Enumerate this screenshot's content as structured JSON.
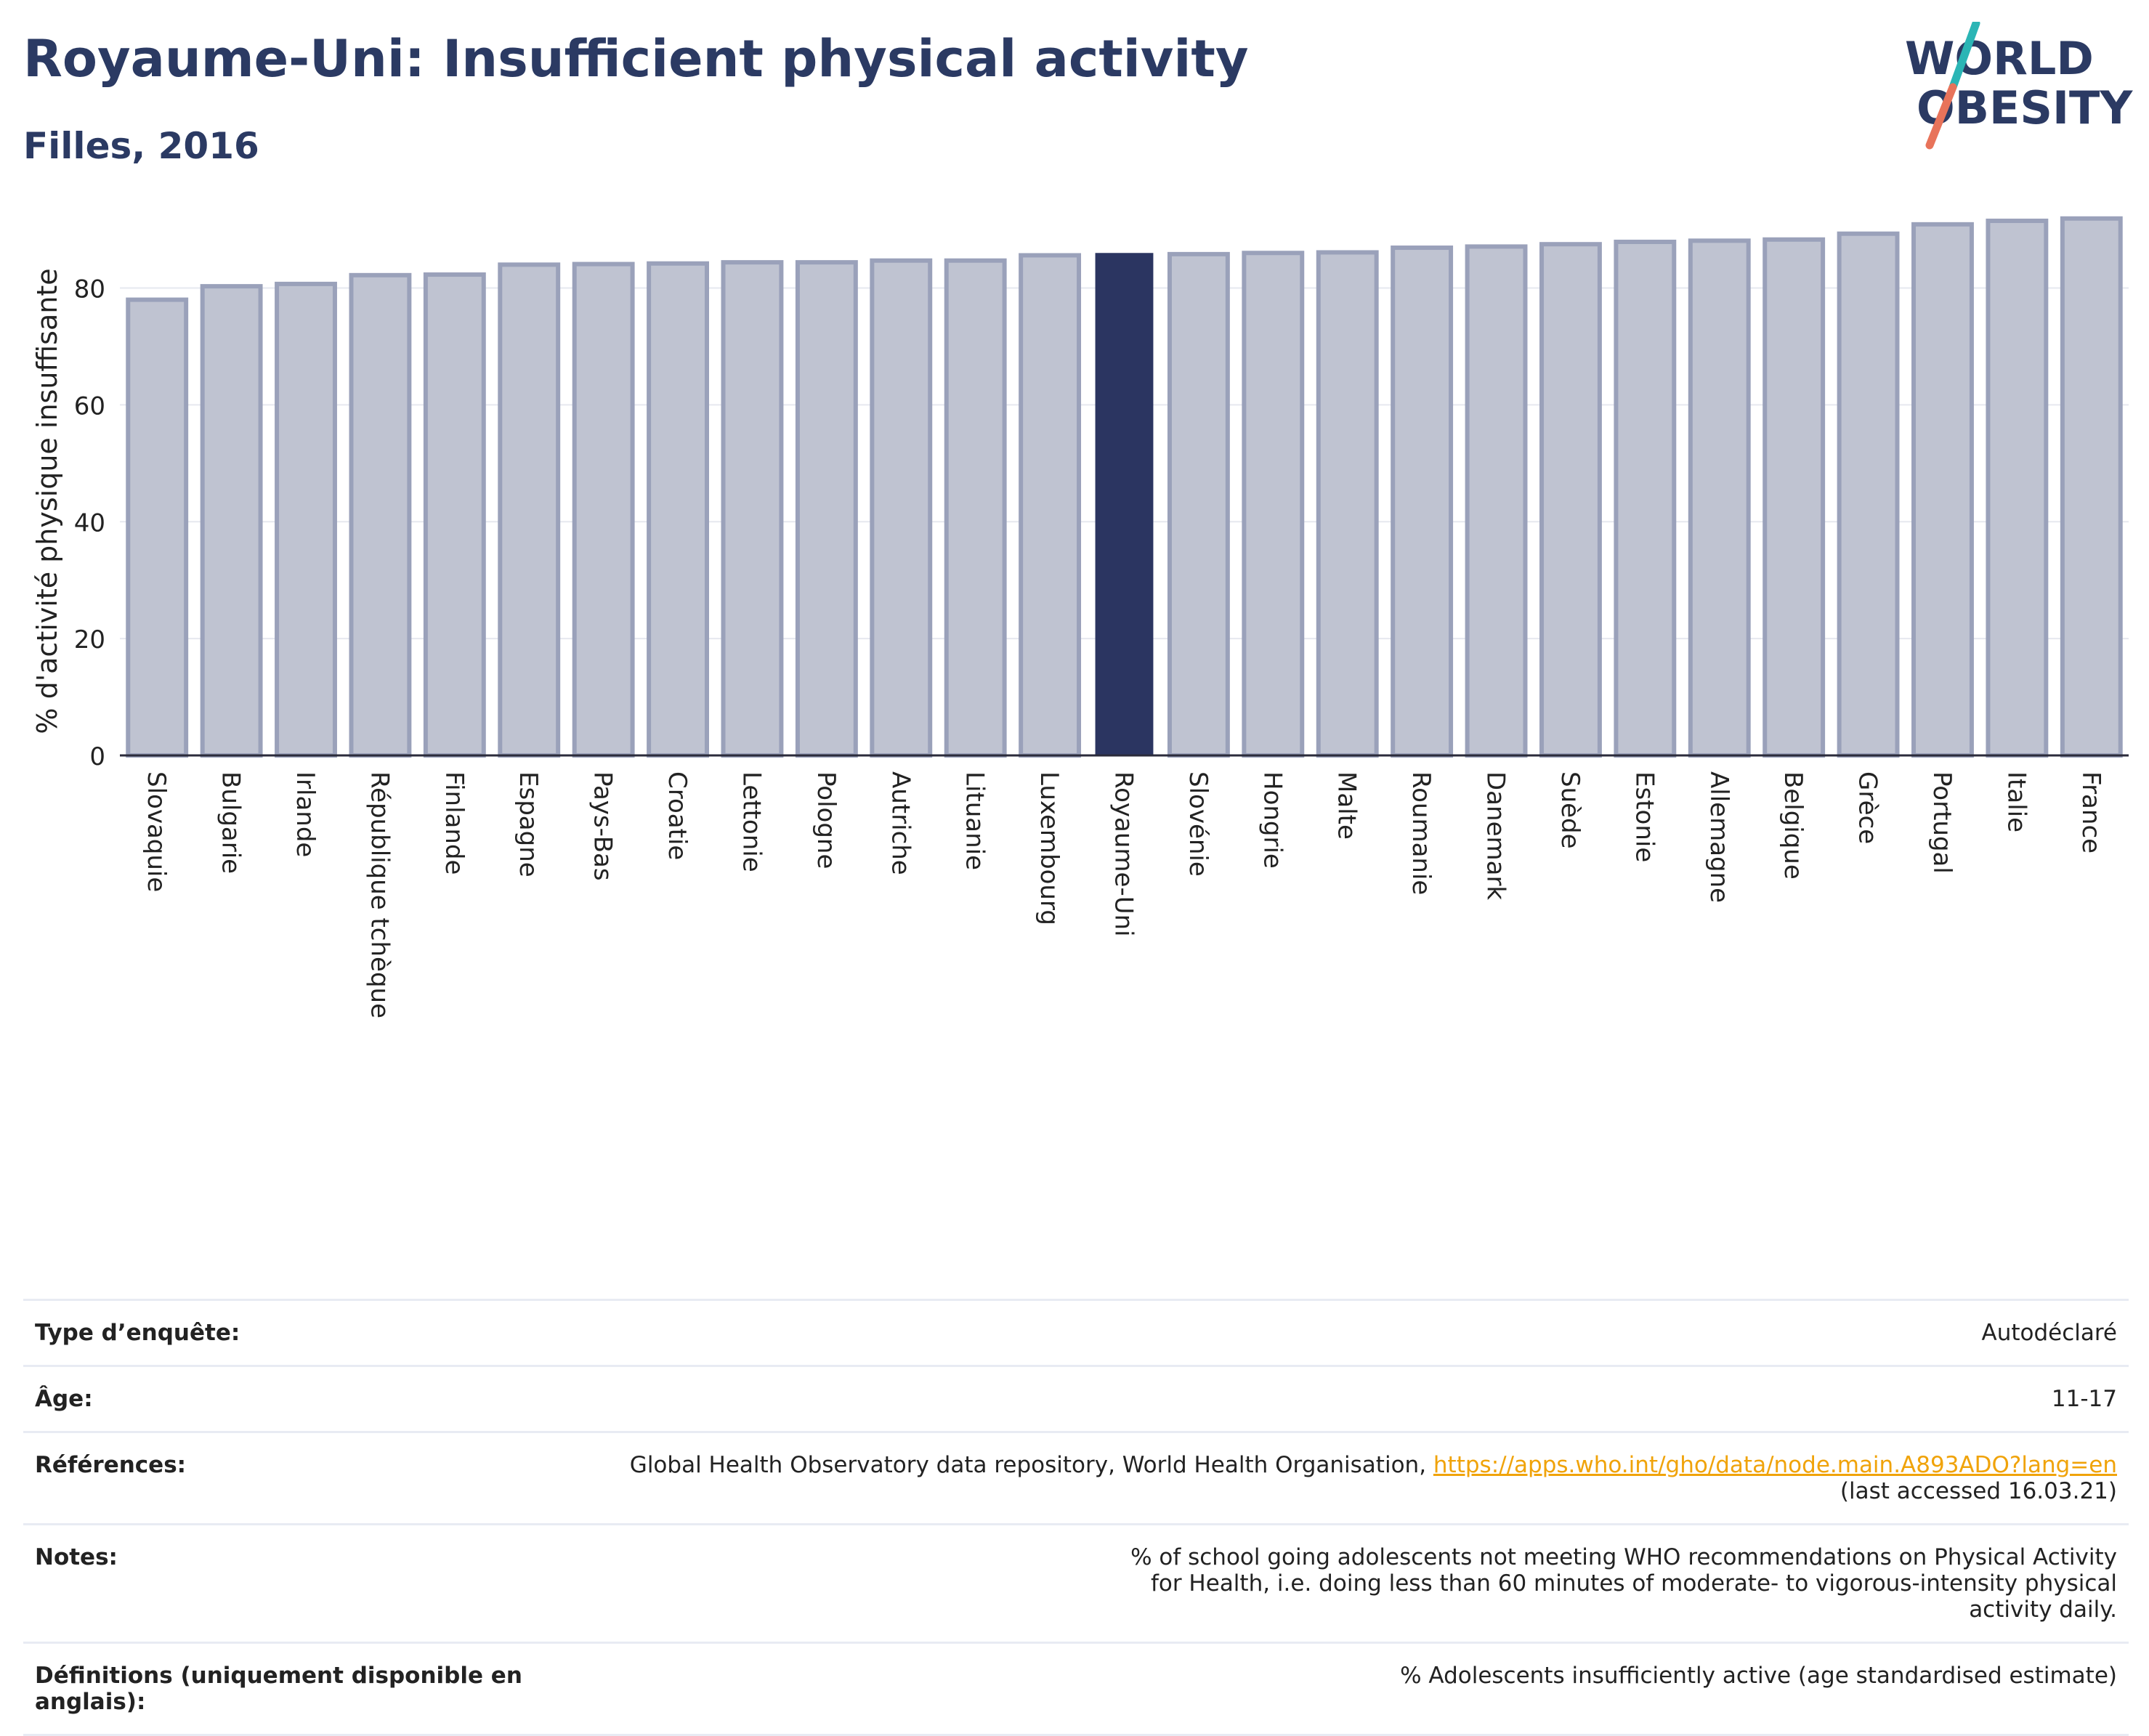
{
  "header": {
    "title": "Royaume-Uni: Insufficient physical activity",
    "subtitle": "Filles, 2016"
  },
  "logo": {
    "line1": "WORLD",
    "line2": "OBESITY",
    "colors": {
      "text": "#2b3a63",
      "slash_top": "#2bb5b5",
      "slash_bottom": "#e8735a"
    }
  },
  "colors": {
    "bar": "#bfc3d1",
    "bar_border": "#9aa1ba",
    "highlight": "#2b3561",
    "axis": "#2b2b3b",
    "grid": "#e6e8ef",
    "link": "#f0a30a"
  },
  "chart_data": {
    "type": "bar",
    "ylabel": "% d'activité physique insuffisante",
    "ylim": [
      0,
      92
    ],
    "yticks": [
      0,
      20,
      40,
      60,
      80
    ],
    "grid": true,
    "highlight": "Royaume-Uni",
    "categories": [
      "Slovaquie",
      "Bulgarie",
      "Irlande",
      "République tchèque",
      "Finlande",
      "Espagne",
      "Pays-Bas",
      "Croatie",
      "Lettonie",
      "Pologne",
      "Autriche",
      "Lituanie",
      "Luxembourg",
      "Royaume-Uni",
      "Slovénie",
      "Hongrie",
      "Malte",
      "Roumanie",
      "Danemark",
      "Suède",
      "Estonie",
      "Allemagne",
      "Belgique",
      "Grèce",
      "Portugal",
      "Italie",
      "France"
    ],
    "values": [
      78.0,
      80.3,
      80.7,
      82.2,
      82.3,
      84.0,
      84.1,
      84.2,
      84.4,
      84.4,
      84.7,
      84.7,
      85.6,
      86.0,
      85.8,
      86.0,
      86.1,
      86.9,
      87.1,
      87.5,
      87.9,
      88.1,
      88.3,
      89.3,
      90.9,
      91.5,
      91.9
    ]
  },
  "info": [
    {
      "label": "Type d’enquête:",
      "value": "Autodéclaré"
    },
    {
      "label": "Âge:",
      "value": "11-17"
    },
    {
      "label": "Références:",
      "value": "Global Health Observatory data repository, World Health Organisation, ",
      "link": "https://apps.who.int/gho/data/node.main.A893ADO?lang=en",
      "value2": "(last accessed 16.03.21)"
    },
    {
      "label": "Notes:",
      "value": "% of school going adolescents not meeting WHO recommendations on Physical Activity for Health, i.e. doing less than 60 minutes of moderate- to vigorous-intensity physical activity daily."
    },
    {
      "label": "Définitions (uniquement disponible en anglais):",
      "value": "% Adolescents insufficiently active (age standardised estimate)"
    }
  ]
}
